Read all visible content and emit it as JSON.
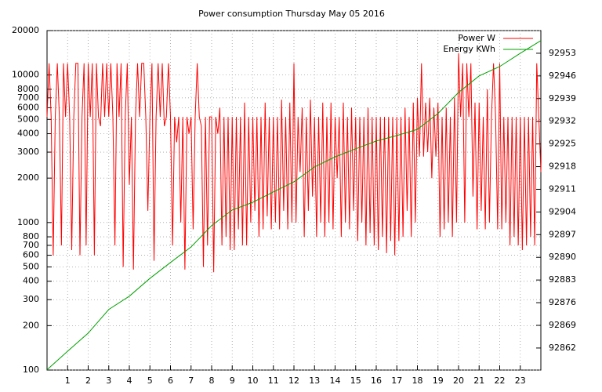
{
  "chart_data": {
    "type": "line",
    "title": "Power consumption Thursday May 05 2016",
    "log_y": true,
    "grid": true,
    "legend": "top-right",
    "xlim": [
      0,
      24
    ],
    "xticks": [
      1,
      2,
      3,
      4,
      5,
      6,
      7,
      8,
      9,
      10,
      11,
      12,
      13,
      14,
      15,
      16,
      17,
      18,
      19,
      20,
      21,
      22,
      23
    ],
    "ylim": [
      100,
      20000
    ],
    "yticks": [
      100,
      200,
      300,
      400,
      500,
      600,
      700,
      800,
      1000,
      2000,
      3000,
      4000,
      5000,
      6000,
      7000,
      8000,
      10000,
      20000
    ],
    "y2lim": [
      92855.2,
      92960
    ],
    "y2ticks": [
      92862,
      92869,
      92876,
      92883,
      92890,
      92897,
      92904,
      92911,
      92918,
      92925,
      92932,
      92939,
      92946,
      92953
    ],
    "series": [
      {
        "name": "Power W",
        "color": "#ff0000",
        "x": [
          0,
          0.1,
          0.2,
          0.3,
          0.4,
          0.5,
          0.6,
          0.7,
          0.8,
          0.9,
          1,
          1.1,
          1.2,
          1.3,
          1.4,
          1.5,
          1.6,
          1.7,
          1.8,
          1.9,
          2,
          2.1,
          2.2,
          2.3,
          2.4,
          2.5,
          2.6,
          2.7,
          2.8,
          2.9,
          3,
          3.1,
          3.2,
          3.3,
          3.4,
          3.5,
          3.6,
          3.7,
          3.8,
          3.9,
          4,
          4.1,
          4.2,
          4.3,
          4.4,
          4.5,
          4.6,
          4.7,
          4.8,
          4.9,
          5,
          5.1,
          5.2,
          5.3,
          5.4,
          5.5,
          5.6,
          5.7,
          5.8,
          5.9,
          6,
          6.1,
          6.2,
          6.3,
          6.4,
          6.5,
          6.6,
          6.7,
          6.8,
          6.9,
          7,
          7.1,
          7.2,
          7.3,
          7.4,
          7.5,
          7.6,
          7.7,
          7.8,
          7.9,
          8,
          8.1,
          8.2,
          8.3,
          8.4,
          8.5,
          8.6,
          8.7,
          8.8,
          8.9,
          9,
          9.1,
          9.2,
          9.3,
          9.4,
          9.5,
          9.6,
          9.7,
          9.8,
          9.9,
          10,
          10.1,
          10.2,
          10.3,
          10.4,
          10.5,
          10.6,
          10.7,
          10.8,
          10.9,
          11,
          11.1,
          11.2,
          11.3,
          11.4,
          11.5,
          11.6,
          11.7,
          11.8,
          11.9,
          12,
          12.1,
          12.2,
          12.3,
          12.4,
          12.5,
          12.6,
          12.7,
          12.8,
          12.9,
          13,
          13.1,
          13.2,
          13.3,
          13.4,
          13.5,
          13.6,
          13.7,
          13.8,
          13.9,
          14,
          14.1,
          14.2,
          14.3,
          14.4,
          14.5,
          14.6,
          14.7,
          14.8,
          14.9,
          15,
          15.1,
          15.2,
          15.3,
          15.4,
          15.5,
          15.6,
          15.7,
          15.8,
          15.9,
          16,
          16.1,
          16.2,
          16.3,
          16.4,
          16.5,
          16.6,
          16.7,
          16.8,
          16.9,
          17,
          17.1,
          17.2,
          17.3,
          17.4,
          17.5,
          17.6,
          17.7,
          17.8,
          17.9,
          18,
          18.1,
          18.2,
          18.3,
          18.4,
          18.5,
          18.6,
          18.7,
          18.8,
          18.9,
          19,
          19.1,
          19.2,
          19.3,
          19.4,
          19.5,
          19.6,
          19.7,
          19.8,
          19.9,
          20,
          20.1,
          20.2,
          20.3,
          20.4,
          20.5,
          20.6,
          20.7,
          20.8,
          20.9,
          21,
          21.1,
          21.2,
          21.3,
          21.4,
          21.5,
          21.6,
          21.7,
          21.8,
          21.9,
          22,
          22.1,
          22.2,
          22.3,
          22.4,
          22.5,
          22.6,
          22.7,
          22.8,
          22.9,
          23,
          23.1,
          23.2,
          23.3,
          23.4,
          23.5,
          23.6,
          23.7,
          23.8,
          23.9,
          24
        ],
        "values": [
          5200,
          12000,
          5200,
          600,
          5200,
          12000,
          5200,
          700,
          12000,
          5200,
          12000,
          5200,
          650,
          5200,
          12000,
          12000,
          600,
          5200,
          12000,
          700,
          12000,
          5200,
          12000,
          600,
          12000,
          5200,
          4500,
          12000,
          5200,
          12000,
          5200,
          12000,
          5200,
          700,
          12000,
          5200,
          12000,
          500,
          5200,
          12000,
          1800,
          5200,
          480,
          5200,
          12000,
          5200,
          12000,
          12000,
          5200,
          1200,
          5200,
          12000,
          550,
          5200,
          12000,
          5200,
          12000,
          4500,
          5200,
          12000,
          5200,
          700,
          5200,
          3500,
          5200,
          1000,
          5200,
          480,
          5200,
          4000,
          5200,
          900,
          5200,
          12000,
          5200,
          4500,
          500,
          5200,
          700,
          5200,
          5200,
          460,
          5200,
          4000,
          6000,
          700,
          5200,
          800,
          5200,
          650,
          5200,
          650,
          5200,
          900,
          5200,
          700,
          6500,
          700,
          5200,
          1000,
          5200,
          1200,
          5200,
          800,
          5200,
          900,
          6500,
          1100,
          5200,
          900,
          5200,
          1000,
          5200,
          900,
          6800,
          1200,
          5200,
          900,
          6500,
          1000,
          12000,
          1000,
          5200,
          2200,
          6000,
          800,
          5200,
          1200,
          6800,
          1500,
          5200,
          800,
          5200,
          1000,
          6500,
          800,
          5200,
          1000,
          6500,
          900,
          5200,
          2000,
          5200,
          800,
          6500,
          1000,
          5200,
          900,
          6000,
          1200,
          5200,
          750,
          5200,
          1000,
          5200,
          700,
          6000,
          850,
          5200,
          700,
          5200,
          650,
          5200,
          800,
          5200,
          620,
          5200,
          750,
          5200,
          600,
          5200,
          750,
          5200,
          800,
          6000,
          1200,
          5200,
          800,
          6500,
          1000,
          7000,
          2800,
          12000,
          2800,
          6500,
          3000,
          7000,
          2000,
          6000,
          2800,
          6500,
          800,
          5200,
          900,
          6000,
          1000,
          5200,
          800,
          7000,
          1000,
          14000,
          5200,
          12000,
          1000,
          12000,
          5200,
          12000,
          1500,
          6500,
          900,
          6500,
          1200,
          5200,
          900,
          8000,
          1000,
          5200,
          12000,
          5200,
          900,
          12000,
          900,
          5200,
          1000,
          5200,
          700,
          5200,
          800,
          5200,
          700,
          5200,
          650,
          5200,
          700,
          5200,
          800,
          5200,
          700,
          12000,
          5200,
          2200
        ]
      },
      {
        "name": "Energy KWh",
        "color": "#00a000",
        "axis": "y2",
        "x": [
          0,
          1,
          2,
          3,
          4,
          5,
          6,
          7,
          8,
          9,
          10,
          11,
          12,
          13,
          14,
          15,
          16,
          17,
          18,
          19,
          20,
          21,
          22,
          23,
          24
        ],
        "values": [
          92855.3,
          92861,
          92866.6,
          92873.9,
          92878,
          92883.5,
          92888.4,
          92893.2,
          92899.8,
          92904.6,
          92907,
          92910.2,
          92913.3,
          92917.9,
          92921,
          92923.5,
          92925.9,
          92927.6,
          92929.5,
          92934.4,
          92940.9,
          92946,
          92948.9,
          92953,
          92956.9
        ]
      }
    ]
  }
}
